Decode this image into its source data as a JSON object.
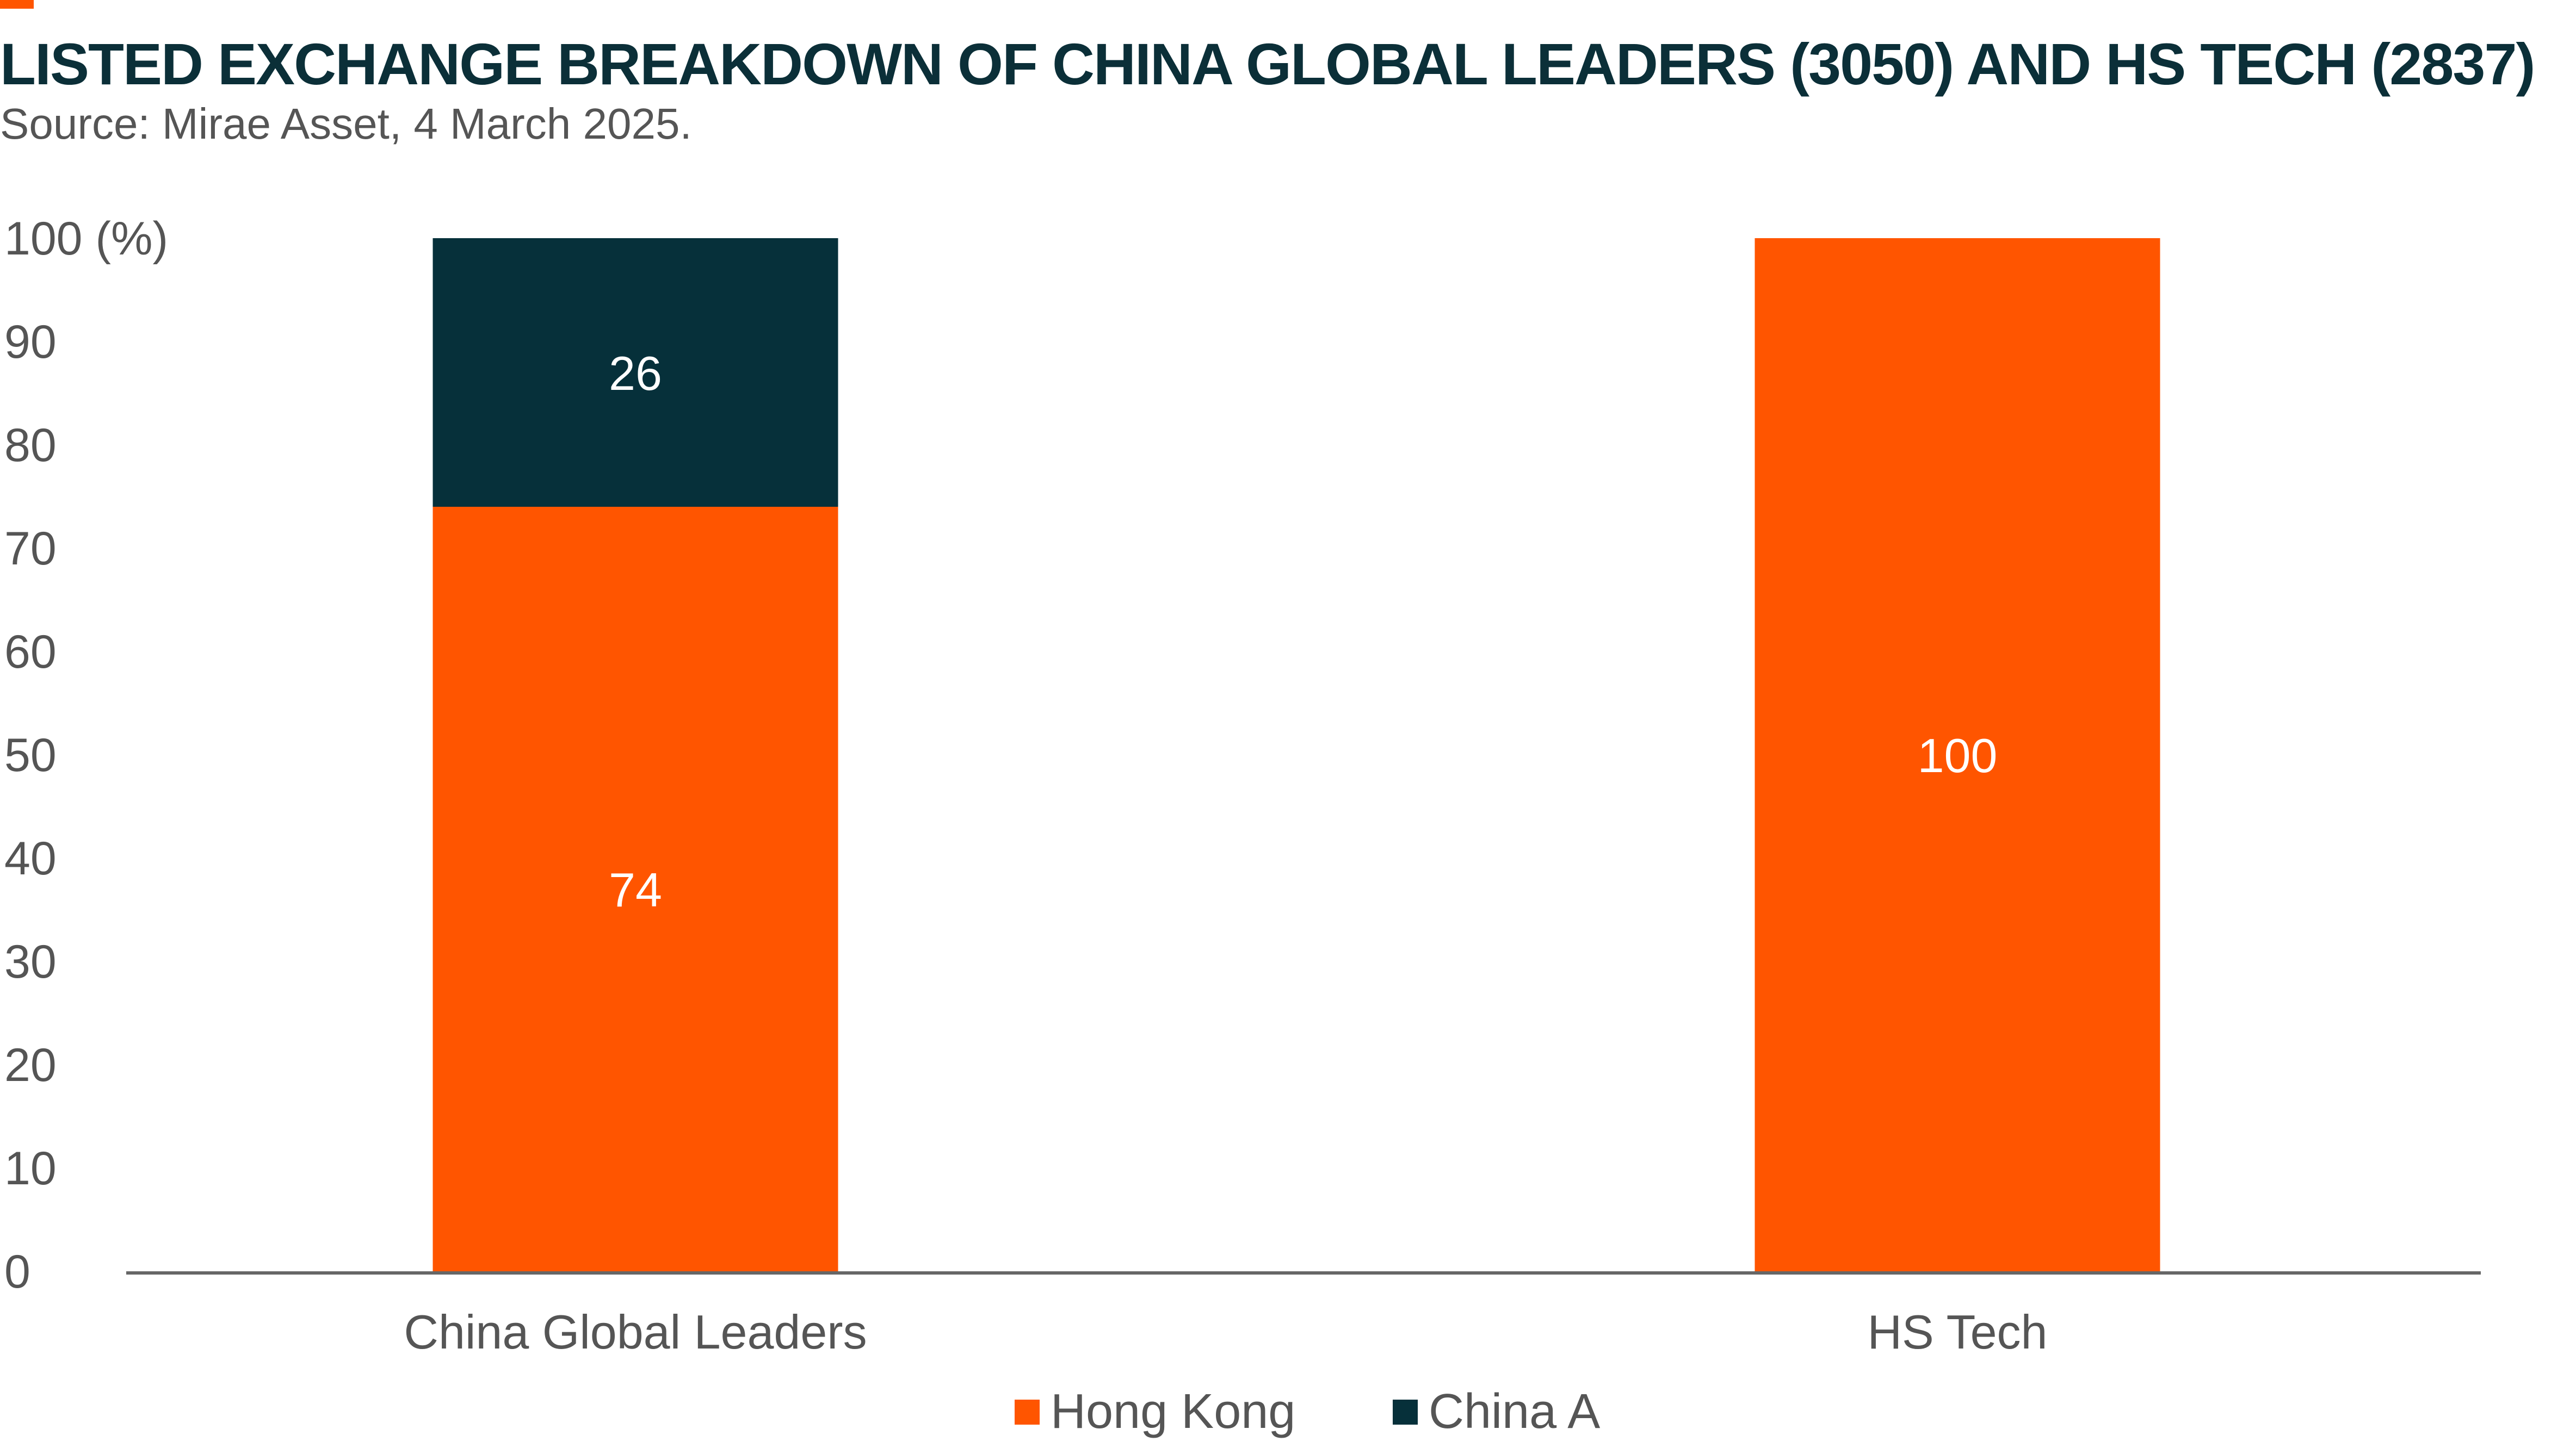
{
  "colors": {
    "accent": "#ff5500",
    "hong_kong": "#ff5500",
    "china_a": "#06303a",
    "title": "#0b2f38",
    "text": "#555555",
    "axis": "#666666",
    "bar_label": "#ffffff"
  },
  "title": "LISTED EXCHANGE BREAKDOWN OF CHINA GLOBAL LEADERS (3050) AND HS TECH (2837)",
  "subtitle": "Source: Mirae Asset, 4 March 2025.",
  "chart_data": {
    "type": "bar",
    "stacked": true,
    "title": "LISTED EXCHANGE BREAKDOWN OF CHINA GLOBAL LEADERS (3050) AND HS TECH (2837)",
    "subtitle": "Source: Mirae Asset, 4 March 2025.",
    "categories": [
      "China Global Leaders",
      "HS Tech"
    ],
    "series": [
      {
        "name": "Hong Kong",
        "values": [
          74,
          100
        ],
        "labels": [
          "74",
          "100"
        ],
        "color": "#ff5500"
      },
      {
        "name": "China A",
        "values": [
          26,
          0
        ],
        "labels": [
          "26",
          ""
        ],
        "color": "#06303a"
      }
    ],
    "ylim": [
      0,
      100
    ],
    "yticks": [
      "0",
      "10",
      "20",
      "30",
      "40",
      "50",
      "60",
      "70",
      "80",
      "90",
      "100 (%)"
    ],
    "ytick_values": [
      0,
      10,
      20,
      30,
      40,
      50,
      60,
      70,
      80,
      90,
      100
    ],
    "xlabel": "",
    "ylabel": "",
    "grid": false,
    "legend_position": "bottom"
  }
}
